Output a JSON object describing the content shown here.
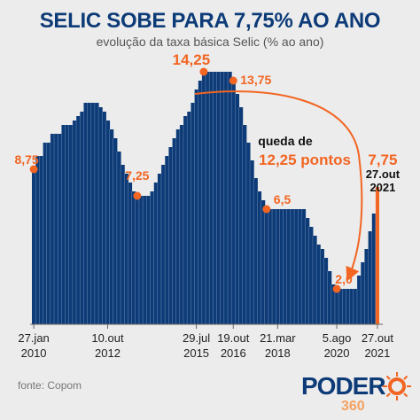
{
  "header": {
    "title": "SELIC SOBE PARA 7,75% AO ANO",
    "subtitle": "evolução da taxa básica Selic (% ao ano)"
  },
  "annotation": {
    "drop_line1": "queda de",
    "drop_line2": "12,25 pontos"
  },
  "footer": {
    "source": "fonte: Copom",
    "logo_word": "PODER",
    "logo_number": "360"
  },
  "colors": {
    "bar": "#0d3b78",
    "accent": "#f26522",
    "background": "#ececec"
  },
  "chart_data": {
    "type": "bar",
    "ylim": [
      0,
      15
    ],
    "values": [
      8.75,
      9.5,
      9.5,
      10.25,
      10.25,
      10.75,
      10.75,
      10.75,
      11.25,
      11.25,
      11.25,
      11.5,
      11.75,
      12.0,
      12.5,
      12.5,
      12.5,
      12.5,
      12.25,
      12.0,
      11.5,
      11.0,
      10.5,
      9.75,
      9.0,
      8.5,
      8.0,
      7.5,
      7.25,
      7.25,
      7.25,
      7.25,
      7.5,
      8.0,
      8.5,
      9.0,
      9.5,
      10.0,
      10.5,
      11.0,
      11.25,
      11.75,
      12.0,
      12.5,
      13.25,
      13.75,
      14.25,
      14.25,
      14.25,
      14.25,
      14.25,
      14.25,
      14.25,
      14.25,
      13.75,
      13.0,
      12.25,
      11.25,
      10.25,
      9.25,
      8.25,
      7.5,
      7.0,
      6.5,
      6.5,
      6.5,
      6.5,
      6.5,
      6.5,
      6.5,
      6.5,
      6.5,
      6.5,
      6.5,
      6.0,
      5.5,
      5.0,
      4.5,
      4.25,
      3.75,
      3.0,
      2.25,
      2.0,
      2.0,
      2.0,
      2.0,
      2.0,
      2.0,
      2.75,
      3.5,
      4.25,
      5.25,
      6.25,
      7.75
    ],
    "highlight": [
      {
        "index": 0,
        "label": "8,75"
      },
      {
        "index": 28,
        "label": "7,25"
      },
      {
        "index": 46,
        "label": "14,25"
      },
      {
        "index": 54,
        "label": "13,75"
      },
      {
        "index": 63,
        "label": "6,5"
      },
      {
        "index": 82,
        "label": "2,0"
      },
      {
        "index": 93,
        "label": "7,75",
        "date_line1": "27.out",
        "date_line2": "2021"
      }
    ],
    "x_ticks": [
      {
        "index": 0,
        "line1": "27.jan",
        "line2": "2010"
      },
      {
        "index": 20,
        "line1": "10.out",
        "line2": "2012"
      },
      {
        "index": 44,
        "line1": "29.jul",
        "line2": "2015"
      },
      {
        "index": 54,
        "line1": "19.out",
        "line2": "2016"
      },
      {
        "index": 66,
        "line1": "21.mar",
        "line2": "2018"
      },
      {
        "index": 82,
        "line1": "5.ago",
        "line2": "2020"
      },
      {
        "index": 93,
        "line1": "27.out",
        "line2": "2021"
      }
    ]
  }
}
